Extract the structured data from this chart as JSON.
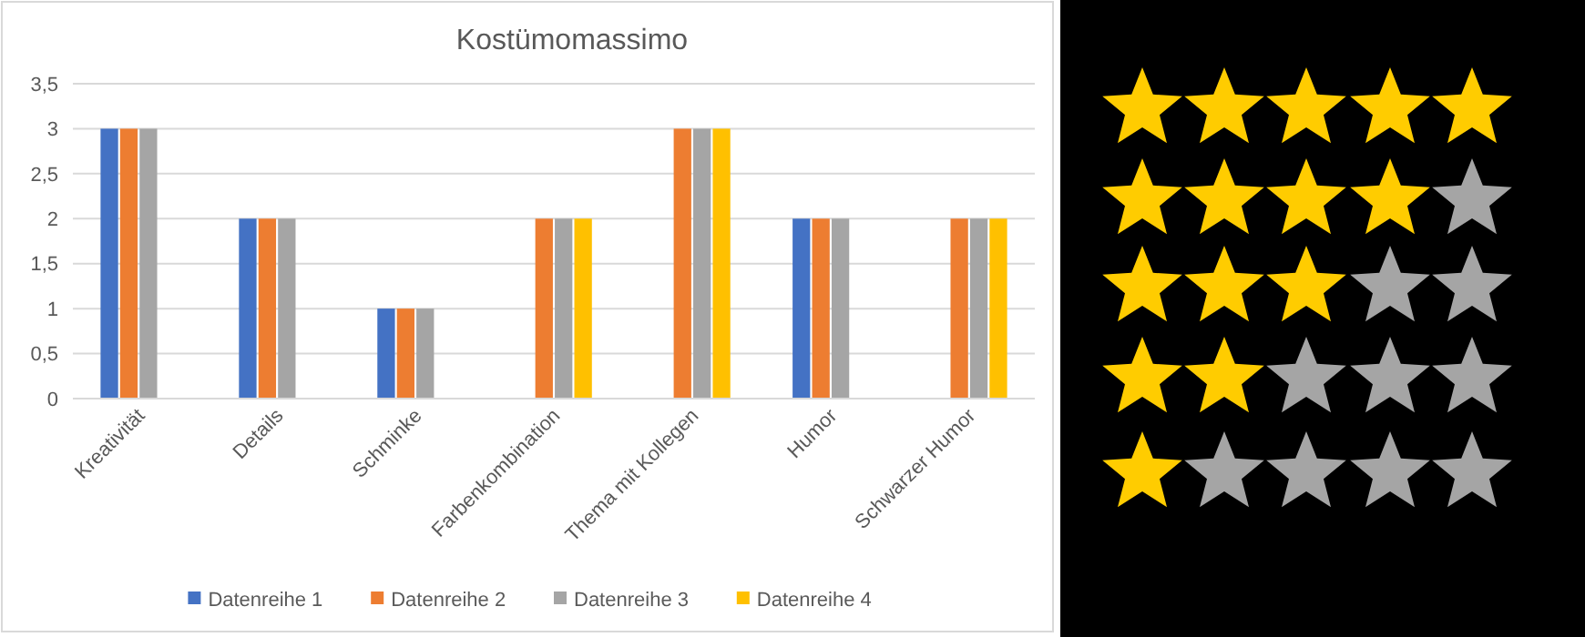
{
  "chart_data": {
    "type": "bar",
    "title": "Kostümomassimo",
    "categories": [
      "Kreativität",
      "Details",
      "Schminke",
      "Farbenkombination",
      "Thema mit Kollegen",
      "Humor",
      "Schwarzer Humor"
    ],
    "series": [
      {
        "name": "Datenreihe 1",
        "color": "#4472c4",
        "values": [
          3,
          2,
          1,
          null,
          null,
          2,
          null
        ]
      },
      {
        "name": "Datenreihe 2",
        "color": "#ed7d31",
        "values": [
          3,
          2,
          1,
          2,
          3,
          2,
          2
        ]
      },
      {
        "name": "Datenreihe 3",
        "color": "#a5a5a5",
        "values": [
          3,
          2,
          1,
          2,
          3,
          2,
          2
        ]
      },
      {
        "name": "Datenreihe 4",
        "color": "#ffc000",
        "values": [
          null,
          null,
          null,
          2,
          3,
          null,
          2
        ]
      }
    ],
    "ylim": [
      0,
      3.5
    ],
    "yticks": [
      0,
      {
        "value": 0.5,
        "label": "0,5"
      },
      1,
      {
        "value": 1.5,
        "label": "1,5"
      },
      2,
      {
        "value": 2.5,
        "label": "2,5"
      },
      3,
      {
        "value": 3.5,
        "label": "3,5"
      }
    ],
    "grid": "y",
    "legend": "bottom"
  }
}
